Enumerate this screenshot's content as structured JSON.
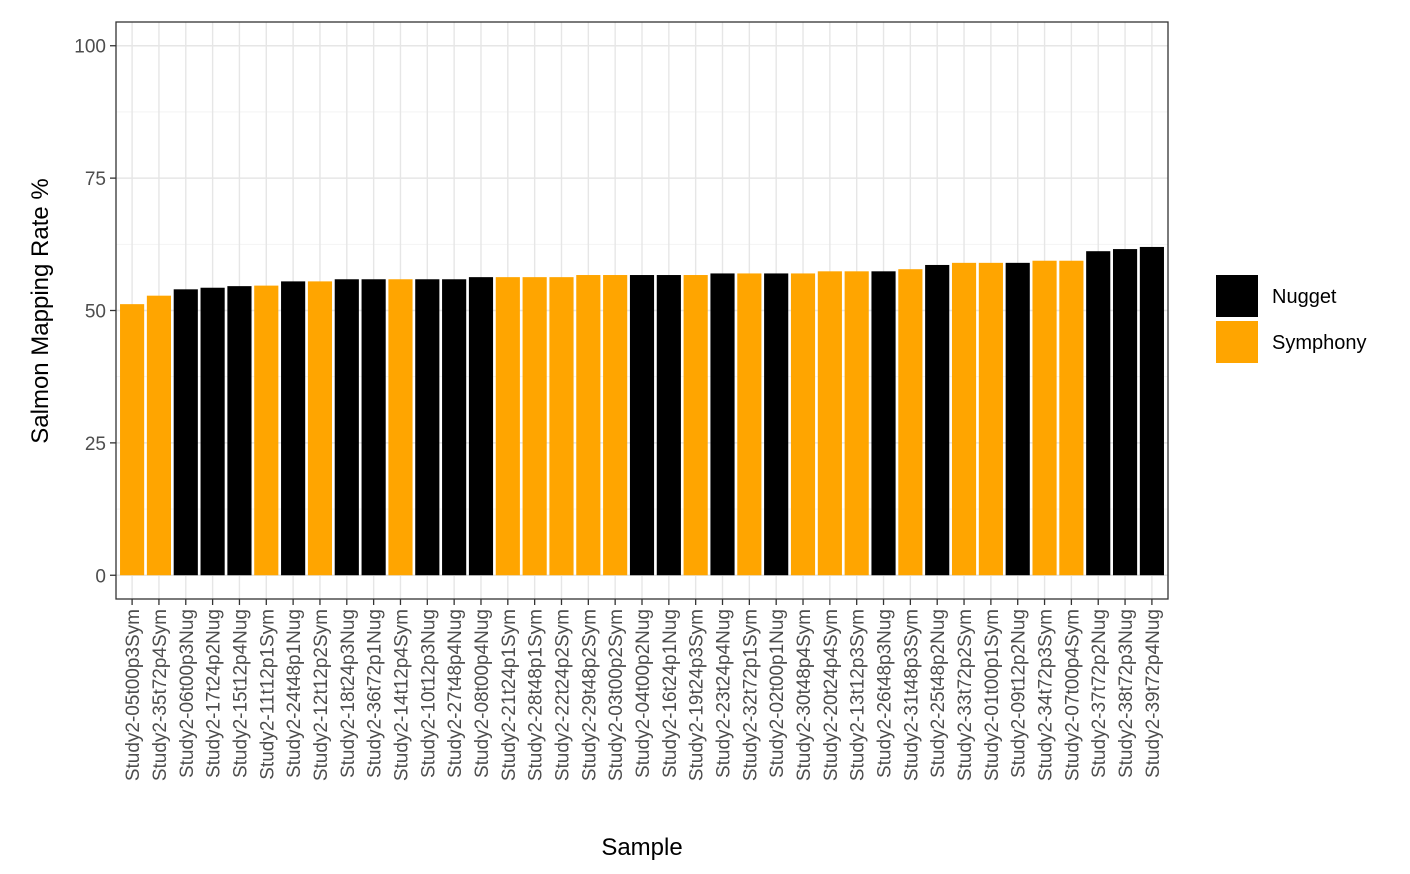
{
  "chart_data": {
    "type": "bar",
    "xlabel": "Sample",
    "ylabel": "Salmon Mapping Rate %",
    "ylim": [
      0,
      100
    ],
    "yticks": [
      0,
      25,
      50,
      75,
      100
    ],
    "grid": true,
    "legend_position": "right",
    "series": [
      {
        "name": "Nugget",
        "color": "#000000"
      },
      {
        "name": "Symphony",
        "color": "#FFA500"
      }
    ],
    "categories": [
      "Study2-05t00p3Sym",
      "Study2-35t72p4Sym",
      "Study2-06t00p3Nug",
      "Study2-17t24p2Nug",
      "Study2-15t12p4Nug",
      "Study2-11t12p1Sym",
      "Study2-24t48p1Nug",
      "Study2-12t12p2Sym",
      "Study2-18t24p3Nug",
      "Study2-36t72p1Nug",
      "Study2-14t12p4Sym",
      "Study2-10t12p3Nug",
      "Study2-27t48p4Nug",
      "Study2-08t00p4Nug",
      "Study2-21t24p1Sym",
      "Study2-28t48p1Sym",
      "Study2-22t24p2Sym",
      "Study2-29t48p2Sym",
      "Study2-03t00p2Sym",
      "Study2-04t00p2Nug",
      "Study2-16t24p1Nug",
      "Study2-19t24p3Sym",
      "Study2-23t24p4Nug",
      "Study2-32t72p1Sym",
      "Study2-02t00p1Nug",
      "Study2-30t48p4Sym",
      "Study2-20t24p4Sym",
      "Study2-13t12p3Sym",
      "Study2-26t48p3Nug",
      "Study2-31t48p3Sym",
      "Study2-25t48p2Nug",
      "Study2-33t72p2Sym",
      "Study2-01t00p1Sym",
      "Study2-09t12p2Nug",
      "Study2-34t72p3Sym",
      "Study2-07t00p4Sym",
      "Study2-37t72p2Nug",
      "Study2-38t72p3Nug",
      "Study2-39t72p4Nug"
    ],
    "values": [
      51.2,
      52.8,
      54.0,
      54.3,
      54.6,
      54.7,
      55.5,
      55.5,
      55.9,
      55.9,
      55.9,
      55.9,
      55.9,
      56.3,
      56.3,
      56.3,
      56.3,
      56.7,
      56.7,
      56.7,
      56.7,
      56.7,
      57.0,
      57.0,
      57.0,
      57.0,
      57.4,
      57.4,
      57.4,
      57.8,
      58.6,
      59.0,
      59.0,
      59.0,
      59.4,
      59.4,
      61.2,
      61.6,
      62.0
    ],
    "groups": [
      "Symphony",
      "Symphony",
      "Nugget",
      "Nugget",
      "Nugget",
      "Symphony",
      "Nugget",
      "Symphony",
      "Nugget",
      "Nugget",
      "Symphony",
      "Nugget",
      "Nugget",
      "Nugget",
      "Symphony",
      "Symphony",
      "Symphony",
      "Symphony",
      "Symphony",
      "Nugget",
      "Nugget",
      "Symphony",
      "Nugget",
      "Symphony",
      "Nugget",
      "Symphony",
      "Symphony",
      "Symphony",
      "Nugget",
      "Symphony",
      "Nugget",
      "Symphony",
      "Symphony",
      "Nugget",
      "Symphony",
      "Symphony",
      "Nugget",
      "Nugget",
      "Nugget"
    ]
  }
}
